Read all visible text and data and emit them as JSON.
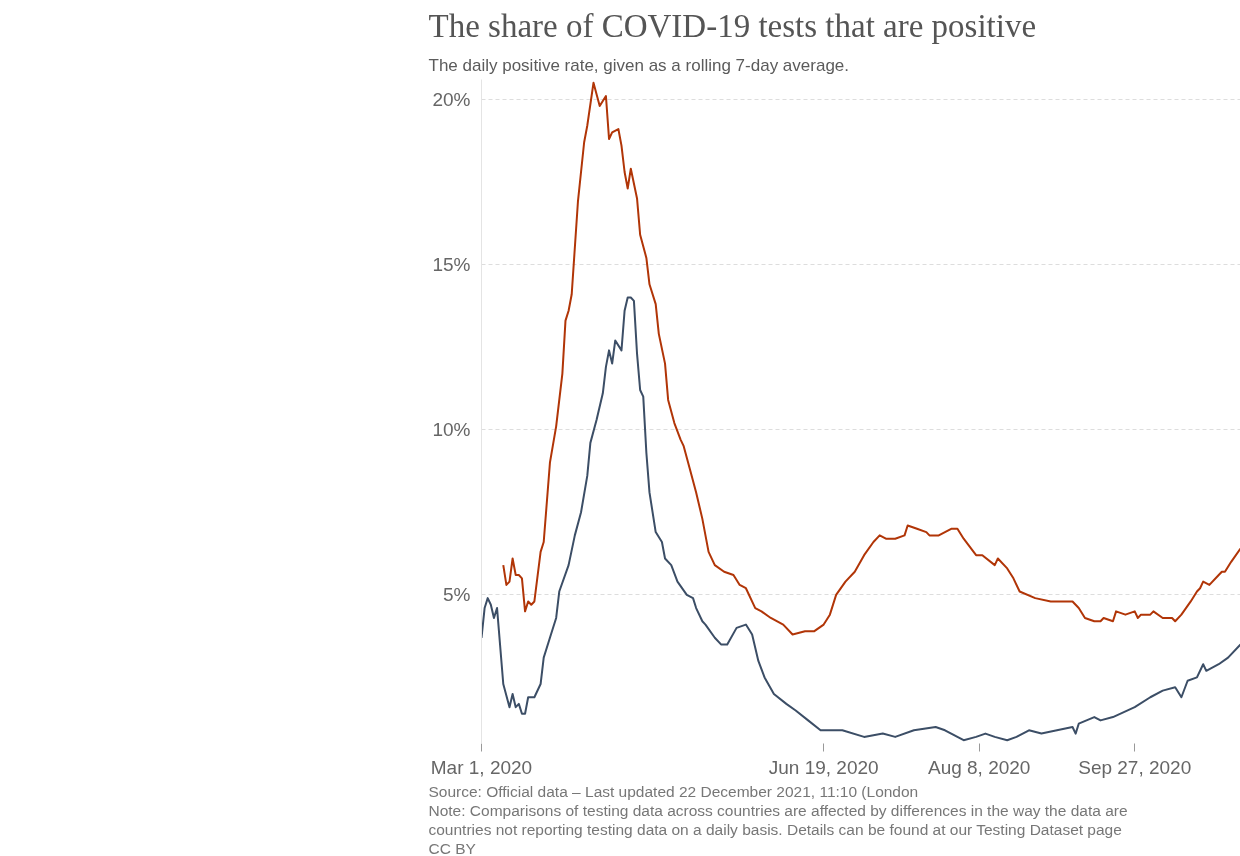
{
  "chart_data": {
    "type": "line",
    "title": "The share of COVID-19 tests that are positive",
    "subtitle": "The daily positive rate, given as a rolling 7-day average.",
    "annotations": [
      "Source: Official data – Last updated 22 December 2021, 11:10 (London",
      "Note: Comparisons of testing data across countries are affected by differences in the way the data are",
      "countries not reporting testing data on a daily basis. Details can be found at our Testing Dataset page",
      "CC BY"
    ],
    "xlim": [
      "2020-03-01",
      "2020-10-31"
    ],
    "xticks": [
      {
        "value": "2020-03-01",
        "label": "Mar 1, 2020"
      },
      {
        "value": "2020-06-19",
        "label": "Jun 19, 2020"
      },
      {
        "value": "2020-08-08",
        "label": "Aug 8, 2020"
      },
      {
        "value": "2020-09-27",
        "label": "Sep 27, 2020"
      }
    ],
    "ylim": [
      0.5,
      20.6
    ],
    "yticks": [
      {
        "value": 5,
        "label": "5%"
      },
      {
        "value": 10,
        "label": "10%"
      },
      {
        "value": 15,
        "label": "15%"
      },
      {
        "value": 20,
        "label": "20%"
      }
    ],
    "grid": "y",
    "line_style": "solid",
    "series": [
      {
        "color": "#b13507",
        "x": [
          "2020-03-08",
          "2020-03-09",
          "2020-03-10",
          "2020-03-11",
          "2020-03-12",
          "2020-03-13",
          "2020-03-14",
          "2020-03-15",
          "2020-03-16",
          "2020-03-17",
          "2020-03-18",
          "2020-03-20",
          "2020-03-21",
          "2020-03-23",
          "2020-03-25",
          "2020-03-27",
          "2020-03-28",
          "2020-03-29",
          "2020-03-30",
          "2020-04-01",
          "2020-04-03",
          "2020-04-04",
          "2020-04-06",
          "2020-04-08",
          "2020-04-10",
          "2020-04-11",
          "2020-04-12",
          "2020-04-14",
          "2020-04-15",
          "2020-04-16",
          "2020-04-17",
          "2020-04-18",
          "2020-04-20",
          "2020-04-21",
          "2020-04-23",
          "2020-04-24",
          "2020-04-26",
          "2020-04-27",
          "2020-04-29",
          "2020-04-30",
          "2020-05-02",
          "2020-05-04",
          "2020-05-05",
          "2020-05-07",
          "2020-05-09",
          "2020-05-11",
          "2020-05-13",
          "2020-05-15",
          "2020-05-18",
          "2020-05-21",
          "2020-05-23",
          "2020-05-25",
          "2020-05-28",
          "2020-05-30",
          "2020-06-02",
          "2020-06-06",
          "2020-06-09",
          "2020-06-13",
          "2020-06-16",
          "2020-06-19",
          "2020-06-21",
          "2020-06-23",
          "2020-06-26",
          "2020-06-29",
          "2020-07-02",
          "2020-07-05",
          "2020-07-07",
          "2020-07-09",
          "2020-07-12",
          "2020-07-15",
          "2020-07-16",
          "2020-07-19",
          "2020-07-22",
          "2020-07-23",
          "2020-07-26",
          "2020-07-30",
          "2020-08-01",
          "2020-08-03",
          "2020-08-07",
          "2020-08-09",
          "2020-08-13",
          "2020-08-14",
          "2020-08-17",
          "2020-08-19",
          "2020-08-21",
          "2020-08-26",
          "2020-08-31",
          "2020-09-03",
          "2020-09-07",
          "2020-09-09",
          "2020-09-11",
          "2020-09-14",
          "2020-09-16",
          "2020-09-17",
          "2020-09-20",
          "2020-09-21",
          "2020-09-24",
          "2020-09-27",
          "2020-09-28",
          "2020-09-29",
          "2020-10-02",
          "2020-10-03",
          "2020-10-06",
          "2020-10-09",
          "2020-10-10",
          "2020-10-12",
          "2020-10-15",
          "2020-10-17",
          "2020-10-18",
          "2020-10-19",
          "2020-10-21",
          "2020-10-24",
          "2020-10-25",
          "2020-10-26",
          "2020-10-28",
          "2020-10-31"
        ],
        "values": [
          5.9,
          5.3,
          5.4,
          6.1,
          5.6,
          5.6,
          5.5,
          4.5,
          4.8,
          4.7,
          4.8,
          6.3,
          6.6,
          9.0,
          10.1,
          11.7,
          13.3,
          13.6,
          14.1,
          16.9,
          18.7,
          19.2,
          20.5,
          19.8,
          20.1,
          18.8,
          19.0,
          19.1,
          18.6,
          17.8,
          17.3,
          17.9,
          17.0,
          15.9,
          15.2,
          14.4,
          13.8,
          12.9,
          12.0,
          10.9,
          10.2,
          9.7,
          9.5,
          8.8,
          8.1,
          7.3,
          6.3,
          5.9,
          5.7,
          5.6,
          5.3,
          5.2,
          4.6,
          4.5,
          4.3,
          4.1,
          3.8,
          3.9,
          3.9,
          4.1,
          4.4,
          5.0,
          5.4,
          5.7,
          6.2,
          6.6,
          6.8,
          6.7,
          6.7,
          6.8,
          7.1,
          7.0,
          6.9,
          6.8,
          6.8,
          7.0,
          7.0,
          6.7,
          6.2,
          6.2,
          5.9,
          6.1,
          5.8,
          5.5,
          5.1,
          4.9,
          4.8,
          4.8,
          4.8,
          4.6,
          4.3,
          4.2,
          4.2,
          4.3,
          4.2,
          4.5,
          4.4,
          4.5,
          4.3,
          4.4,
          4.4,
          4.5,
          4.3,
          4.3,
          4.2,
          4.4,
          4.8,
          5.1,
          5.2,
          5.4,
          5.3,
          5.6,
          5.7,
          5.7,
          6.0,
          6.4
        ]
      },
      {
        "color": "#3c4e66",
        "x": [
          "2020-03-01",
          "2020-03-02",
          "2020-03-03",
          "2020-03-04",
          "2020-03-05",
          "2020-03-06",
          "2020-03-08",
          "2020-03-10",
          "2020-03-11",
          "2020-03-12",
          "2020-03-13",
          "2020-03-14",
          "2020-03-15",
          "2020-03-16",
          "2020-03-18",
          "2020-03-20",
          "2020-03-21",
          "2020-03-23",
          "2020-03-25",
          "2020-03-26",
          "2020-03-29",
          "2020-03-31",
          "2020-04-02",
          "2020-04-04",
          "2020-04-05",
          "2020-04-07",
          "2020-04-09",
          "2020-04-10",
          "2020-04-11",
          "2020-04-12",
          "2020-04-13",
          "2020-04-15",
          "2020-04-16",
          "2020-04-17",
          "2020-04-18",
          "2020-04-19",
          "2020-04-20",
          "2020-04-21",
          "2020-04-22",
          "2020-04-23",
          "2020-04-24",
          "2020-04-26",
          "2020-04-28",
          "2020-04-29",
          "2020-05-01",
          "2020-05-03",
          "2020-05-06",
          "2020-05-08",
          "2020-05-09",
          "2020-05-11",
          "2020-05-12",
          "2020-05-15",
          "2020-05-17",
          "2020-05-19",
          "2020-05-22",
          "2020-05-25",
          "2020-05-27",
          "2020-05-29",
          "2020-05-31",
          "2020-06-03",
          "2020-06-07",
          "2020-06-10",
          "2020-06-14",
          "2020-06-18",
          "2020-06-25",
          "2020-07-02",
          "2020-07-08",
          "2020-07-12",
          "2020-07-18",
          "2020-07-25",
          "2020-07-28",
          "2020-08-03",
          "2020-08-07",
          "2020-08-10",
          "2020-08-13",
          "2020-08-17",
          "2020-08-20",
          "2020-08-24",
          "2020-08-28",
          "2020-09-02",
          "2020-09-07",
          "2020-09-08",
          "2020-09-09",
          "2020-09-14",
          "2020-09-16",
          "2020-09-20",
          "2020-09-27",
          "2020-10-02",
          "2020-10-06",
          "2020-10-10",
          "2020-10-12",
          "2020-10-14",
          "2020-10-17",
          "2020-10-19",
          "2020-10-20",
          "2020-10-24",
          "2020-10-27",
          "2020-10-31"
        ],
        "values": [
          3.7,
          4.6,
          4.9,
          4.7,
          4.3,
          4.6,
          2.3,
          1.6,
          2.0,
          1.6,
          1.7,
          1.4,
          1.4,
          1.9,
          1.9,
          2.3,
          3.1,
          3.7,
          4.3,
          5.1,
          5.9,
          6.8,
          7.5,
          8.6,
          9.6,
          10.3,
          11.1,
          11.9,
          12.4,
          12.0,
          12.7,
          12.4,
          13.6,
          14.0,
          14.0,
          13.9,
          12.3,
          11.2,
          11.0,
          9.3,
          8.1,
          6.9,
          6.6,
          6.1,
          5.9,
          5.4,
          5.0,
          4.9,
          4.6,
          4.2,
          4.1,
          3.7,
          3.5,
          3.5,
          4.0,
          4.1,
          3.8,
          3.0,
          2.5,
          2.0,
          1.7,
          1.5,
          1.2,
          0.9,
          0.9,
          0.7,
          0.8,
          0.7,
          0.9,
          1.0,
          0.9,
          0.6,
          0.7,
          0.8,
          0.7,
          0.6,
          0.7,
          0.9,
          0.8,
          0.9,
          1.0,
          0.8,
          1.1,
          1.3,
          1.2,
          1.3,
          1.6,
          1.9,
          2.1,
          2.2,
          1.9,
          2.4,
          2.5,
          2.9,
          2.7,
          2.9,
          3.1,
          3.5
        ]
      }
    ]
  }
}
